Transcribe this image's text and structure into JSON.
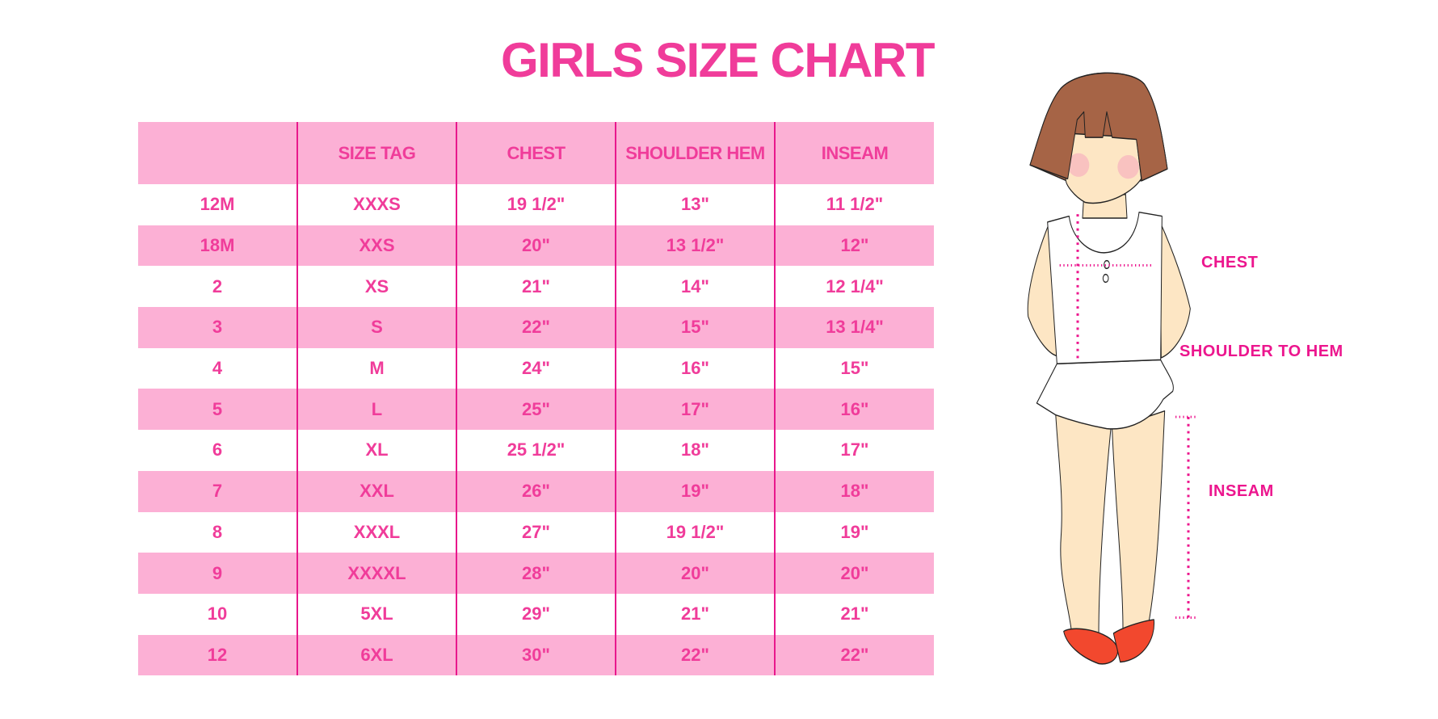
{
  "title": "GIRLS SIZE CHART",
  "table": {
    "headers": [
      "",
      "SIZE TAG",
      "CHEST",
      "SHOULDER HEM",
      "INSEAM"
    ],
    "rows": [
      [
        "12M",
        "XXXS",
        "19 1/2\"",
        "13\"",
        "11 1/2\""
      ],
      [
        "18M",
        "XXS",
        "20\"",
        "13 1/2\"",
        "12\""
      ],
      [
        "2",
        "XS",
        "21\"",
        "14\"",
        "12 1/4\""
      ],
      [
        "3",
        "S",
        "22\"",
        "15\"",
        "13 1/4\""
      ],
      [
        "4",
        "M",
        "24\"",
        "16\"",
        "15\""
      ],
      [
        "5",
        "L",
        "25\"",
        "17\"",
        "16\""
      ],
      [
        "6",
        "XL",
        "25 1/2\"",
        "18\"",
        "17\""
      ],
      [
        "7",
        "XXL",
        "26\"",
        "19\"",
        "18\""
      ],
      [
        "8",
        "XXXL",
        "27\"",
        "19 1/2\"",
        "19\""
      ],
      [
        "9",
        "XXXXL",
        "28\"",
        "20\"",
        "20\""
      ],
      [
        "10",
        "5XL",
        "29\"",
        "21\"",
        "21\""
      ],
      [
        "12",
        "6XL",
        "30\"",
        "22\"",
        "22\""
      ]
    ]
  },
  "figure": {
    "labels": {
      "chest": "CHEST",
      "shoulder_to_hem": "SHOULDER TO HEM",
      "inseam": "INSEAM"
    }
  },
  "colors": {
    "accent": "#f03c9a",
    "row_fill": "#fcb0d5",
    "divider": "#e8188c",
    "measure_line": "#ec168e"
  }
}
